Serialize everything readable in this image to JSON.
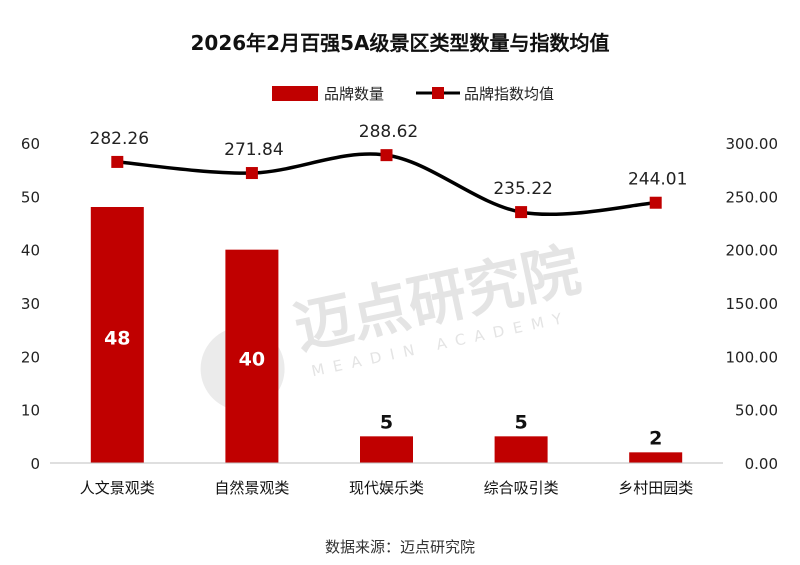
{
  "chart_data": {
    "type": "bar+line",
    "title": "2026年2月百强5A级景区类型数量与指数均值",
    "categories": [
      "人文景观类",
      "自然景观类",
      "现代娱乐类",
      "综合吸引类",
      "乡村田园类"
    ],
    "series": [
      {
        "name": "品牌数量",
        "type": "bar",
        "axis": "left",
        "color": "#c00000",
        "values": [
          48,
          40,
          5,
          5,
          2
        ],
        "labels": [
          "48",
          "40",
          "5",
          "5",
          "2"
        ]
      },
      {
        "name": "品牌指数均值",
        "type": "line",
        "axis": "right",
        "color": "#000000",
        "marker_color": "#c00000",
        "values": [
          282.26,
          271.84,
          288.62,
          235.22,
          244.01
        ],
        "labels": [
          "282.26",
          "271.84",
          "288.62",
          "235.22",
          "244.01"
        ]
      }
    ],
    "y_left": {
      "min": 0,
      "max": 60,
      "ticks": [
        "0",
        "10",
        "20",
        "30",
        "40",
        "50",
        "60"
      ]
    },
    "y_right": {
      "min": 0,
      "max": 300,
      "ticks": [
        "0.00",
        "50.00",
        "100.00",
        "150.00",
        "200.00",
        "250.00",
        "300.00"
      ]
    },
    "legend_position": "top-center",
    "grid": false
  },
  "source_text": "数据来源：迈点研究院",
  "watermark": {
    "cn": "迈点研究院",
    "en": "MEADIN ACADEMY"
  }
}
